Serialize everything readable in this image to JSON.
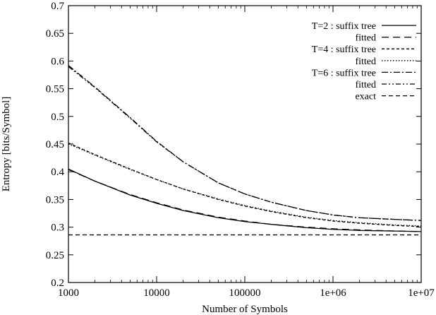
{
  "chart_data": {
    "type": "line",
    "title": "",
    "xlabel": "Number of Symbols",
    "ylabel": "Entropy [bits/Symbol]",
    "x_scale": "log",
    "xlim": [
      1000,
      10000000
    ],
    "ylim": [
      0.2,
      0.7
    ],
    "x_ticks": [
      1000,
      10000,
      100000,
      1000000,
      10000000
    ],
    "x_tick_labels": [
      "1000",
      "10000",
      "100000",
      "1e+06",
      "1e+07"
    ],
    "y_ticks": [
      0.2,
      0.25,
      0.3,
      0.35,
      0.4,
      0.45,
      0.5,
      0.55,
      0.6,
      0.65,
      0.7
    ],
    "y_tick_labels": [
      "0.2",
      "0.25",
      "0.3",
      "0.35",
      "0.4",
      "0.45",
      "0.5",
      "0.55",
      "0.6",
      "0.65",
      "0.7"
    ],
    "grid": false,
    "legend_position": "top-right",
    "series": [
      {
        "name": "T=2 : suffix tree",
        "style": "solid",
        "x": [
          1000,
          2000,
          5000,
          10000,
          20000,
          50000,
          100000,
          200000,
          500000,
          1000000,
          2000000,
          5000000,
          10000000
        ],
        "y": [
          0.405,
          0.383,
          0.358,
          0.343,
          0.33,
          0.317,
          0.31,
          0.305,
          0.299,
          0.296,
          0.294,
          0.293,
          0.292
        ]
      },
      {
        "name": "fitted",
        "style": "longdash",
        "x": [
          1000,
          2000,
          5000,
          10000,
          20000,
          50000,
          100000,
          200000,
          500000,
          1000000,
          2000000,
          5000000,
          10000000
        ],
        "y": [
          0.404,
          0.383,
          0.359,
          0.344,
          0.331,
          0.318,
          0.311,
          0.305,
          0.3,
          0.297,
          0.295,
          0.293,
          0.292
        ]
      },
      {
        "name": "T=4 : suffix tree",
        "style": "shortdash",
        "x": [
          1000,
          2000,
          5000,
          10000,
          20000,
          50000,
          100000,
          200000,
          500000,
          1000000,
          2000000,
          5000000,
          10000000
        ],
        "y": [
          0.452,
          0.431,
          0.405,
          0.386,
          0.369,
          0.35,
          0.338,
          0.328,
          0.317,
          0.311,
          0.307,
          0.303,
          0.301
        ]
      },
      {
        "name": "fitted",
        "style": "dotted",
        "x": [
          1000,
          2000,
          5000,
          10000,
          20000,
          50000,
          100000,
          200000,
          500000,
          1000000,
          2000000,
          5000000,
          10000000
        ],
        "y": [
          0.45,
          0.43,
          0.404,
          0.386,
          0.369,
          0.351,
          0.339,
          0.329,
          0.318,
          0.312,
          0.308,
          0.304,
          0.302
        ]
      },
      {
        "name": "T=6 : suffix tree",
        "style": "dashdot",
        "x": [
          1000,
          2000,
          5000,
          10000,
          20000,
          50000,
          100000,
          200000,
          500000,
          1000000,
          2000000,
          5000000,
          10000000
        ],
        "y": [
          0.592,
          0.553,
          0.498,
          0.455,
          0.418,
          0.38,
          0.36,
          0.345,
          0.33,
          0.322,
          0.317,
          0.314,
          0.312
        ]
      },
      {
        "name": "fitted",
        "style": "dashdotdot",
        "x": [
          1000,
          2000,
          5000,
          10000,
          20000,
          50000,
          100000,
          200000,
          500000,
          1000000,
          2000000,
          5000000,
          10000000
        ],
        "y": [
          0.59,
          0.552,
          0.497,
          0.454,
          0.418,
          0.38,
          0.36,
          0.345,
          0.33,
          0.322,
          0.317,
          0.314,
          0.312
        ]
      },
      {
        "name": "exact",
        "style": "medium-dash",
        "x": [
          1000,
          10000000
        ],
        "y": [
          0.286,
          0.286
        ]
      }
    ]
  }
}
